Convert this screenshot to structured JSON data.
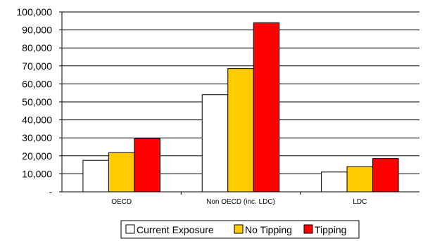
{
  "chart_data": {
    "type": "bar",
    "title": "",
    "xlabel": "",
    "ylabel": "",
    "categories": [
      "OECD",
      "Non OECD (inc. LDC)",
      "LDC"
    ],
    "series": [
      {
        "name": "Current Exposure",
        "color": "#ffffff",
        "values": [
          17500,
          54000,
          11000
        ]
      },
      {
        "name": "No Tipping",
        "color": "#ffcc00",
        "values": [
          21800,
          68500,
          14000
        ]
      },
      {
        "name": "Tipping",
        "color": "#ff0000",
        "values": [
          29500,
          94000,
          18500
        ]
      }
    ],
    "ylim": [
      0,
      100000
    ],
    "yticks": [
      "-",
      "10,000",
      "20,000",
      "30,000",
      "40,000",
      "50,000",
      "60,000",
      "70,000",
      "80,000",
      "90,000",
      "100,000"
    ],
    "grid": true,
    "legend_position": "bottom"
  }
}
